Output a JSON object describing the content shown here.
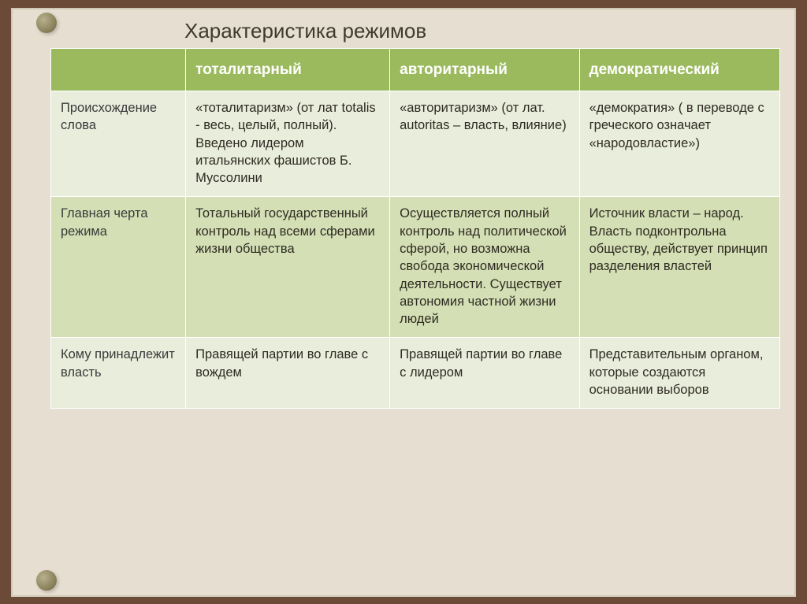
{
  "title": "Характеристика режимов",
  "colors": {
    "page_bg": "#6b4a38",
    "panel_bg": "#e6ded0",
    "header_bg": "#9bba5d",
    "header_text": "#ffffff",
    "row_odd_bg": "#e9eddb",
    "row_even_bg": "#d4dfb5",
    "cell_border": "#ffffff",
    "text": "#2e2b22"
  },
  "table": {
    "columns": [
      "",
      "тоталитарный",
      "авторитарный",
      "демократический"
    ],
    "column_widths_pct": [
      18.5,
      28,
      26,
      27.5
    ],
    "header_fontsize": 19,
    "cell_fontsize": 16.5,
    "rows": [
      {
        "label": "Происхождение слова",
        "cells": [
          "«тоталитаризм» (от лат totalis -  весь, целый, полный). Введено лидером итальянских фашистов Б. Муссолини",
          "«авторитаризм» (от лат. autoritas – власть, влияние)",
          "«демократия» ( в переводе с греческого означает «народовластие»)"
        ]
      },
      {
        "label": "Главная черта режима",
        "cells": [
          "Тотальный государственный контроль над всеми сферами жизни общества",
          "Осуществляется полный контроль над политической сферой, но возможна свобода экономической деятельности. Существует автономия частной жизни людей",
          "Источник власти – народ. Власть подконтрольна обществу, действует принцип разделения властей"
        ]
      },
      {
        "label": "Кому принадлежит власть",
        "cells": [
          "Правящей партии во главе с вождем",
          "Правящей партии во главе с лидером",
          "Представительным органом, которые создаются основании выборов"
        ]
      }
    ]
  }
}
